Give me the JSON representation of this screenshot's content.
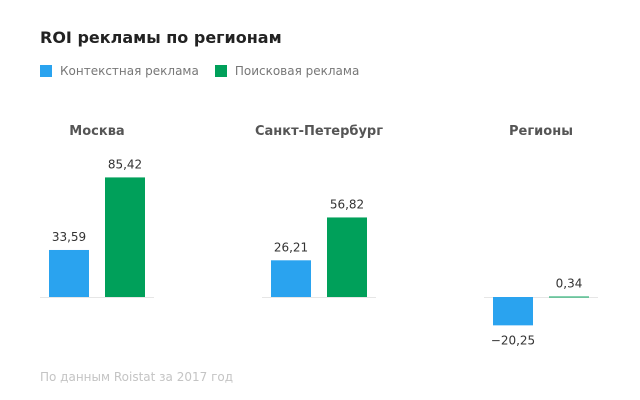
{
  "title": "ROI рекламы по регионам",
  "legend": {
    "items": [
      {
        "label": "Контекстная реклама",
        "color": "#2aa3ef"
      },
      {
        "label": "Поисковая реклама",
        "color": "#00a05a"
      }
    ]
  },
  "source": "По данным Roistat за 2017 год",
  "chart_data": {
    "type": "bar",
    "title": "ROI рекламы по регионам",
    "categories": [
      "Москва",
      "Санкт-Петербург",
      "Регионы"
    ],
    "series": [
      {
        "name": "Контекстная реклама",
        "color": "#2aa3ef",
        "values": [
          33.59,
          26.21,
          -20.25
        ],
        "labels": [
          "33,59",
          "26,21",
          "−20,25"
        ]
      },
      {
        "name": "Поисковая реклама",
        "color": "#00a05a",
        "values": [
          85.42,
          56.82,
          0.34
        ],
        "labels": [
          "85,42",
          "56,82",
          "0,34"
        ]
      }
    ],
    "legend": "top-left",
    "grid": false
  }
}
